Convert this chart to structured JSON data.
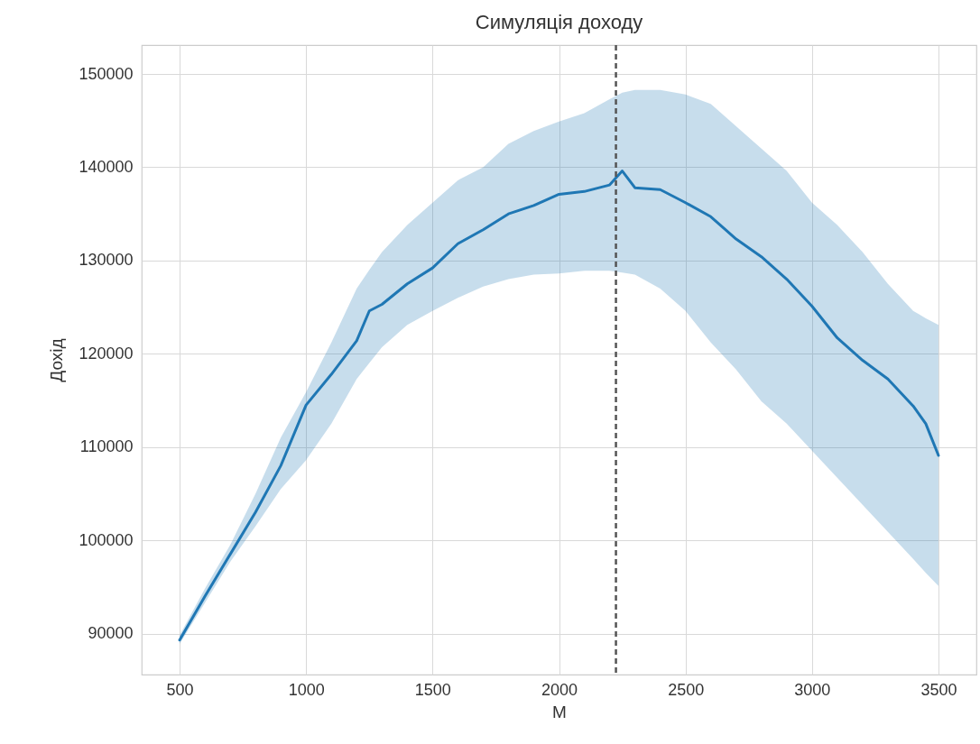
{
  "chart_data": {
    "type": "line",
    "title": "Симуляція доходу",
    "xlabel": "M",
    "ylabel": "Дохід",
    "x": [
      500,
      600,
      700,
      800,
      900,
      1000,
      1100,
      1200,
      1250,
      1300,
      1400,
      1500,
      1600,
      1700,
      1800,
      1900,
      2000,
      2100,
      2200,
      2250,
      2300,
      2400,
      2500,
      2600,
      2700,
      2800,
      2900,
      3000,
      3100,
      3200,
      3300,
      3400,
      3450,
      3500
    ],
    "series": [
      {
        "color": "#1f77b4",
        "values": [
          89300,
          94000,
          98500,
          103000,
          108000,
          114500,
          117800,
          121400,
          124600,
          125300,
          127500,
          129200,
          131800,
          133300,
          135000,
          135900,
          137100,
          137400,
          138100,
          139600,
          137800,
          137600,
          136200,
          134700,
          132300,
          130400,
          128000,
          125100,
          121700,
          119300,
          117300,
          114400,
          112500,
          109100
        ],
        "lower": [
          88900,
          93300,
          97700,
          101500,
          105500,
          108600,
          112500,
          117300,
          119000,
          120700,
          123100,
          124600,
          126000,
          127200,
          128000,
          128500,
          128600,
          128900,
          128900,
          128700,
          128500,
          127000,
          124600,
          121200,
          118300,
          114900,
          112500,
          109600,
          106700,
          103800,
          100900,
          98000,
          96500,
          95100
        ],
        "upper": [
          89800,
          94800,
          99500,
          105000,
          111000,
          115900,
          121200,
          127000,
          129000,
          130900,
          133800,
          136200,
          138600,
          140000,
          142500,
          143900,
          144900,
          145800,
          147300,
          148000,
          148300,
          148300,
          147800,
          146800,
          144400,
          142000,
          139600,
          136200,
          133800,
          130900,
          127500,
          124600,
          123800,
          123100
        ]
      }
    ],
    "xlim": [
      350,
      3650
    ],
    "ylim": [
      85600,
      153100
    ],
    "xticks": [
      500,
      1000,
      1500,
      2000,
      2500,
      3000,
      3500
    ],
    "yticks": [
      90000,
      100000,
      110000,
      120000,
      130000,
      140000,
      150000
    ],
    "ref_lines": [
      {
        "axis": "x",
        "value": 2225,
        "color": "#555555",
        "line_style": "dashed"
      }
    ],
    "grid": true
  }
}
